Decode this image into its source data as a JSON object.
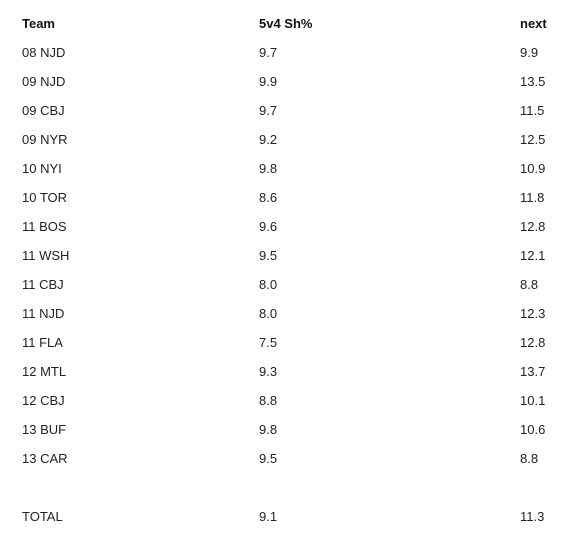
{
  "table": {
    "headers": {
      "team": "Team",
      "sh": "5v4 Sh%",
      "next": "next"
    },
    "rows": [
      {
        "team": "08 NJD",
        "sh": "9.7",
        "next": "9.9"
      },
      {
        "team": "09 NJD",
        "sh": "9.9",
        "next": "13.5"
      },
      {
        "team": "09 CBJ",
        "sh": "9.7",
        "next": "11.5"
      },
      {
        "team": "09 NYR",
        "sh": "9.2",
        "next": "12.5"
      },
      {
        "team": "10 NYI",
        "sh": "9.8",
        "next": "10.9"
      },
      {
        "team": "10 TOR",
        "sh": "8.6",
        "next": "11.8"
      },
      {
        "team": "11 BOS",
        "sh": "9.6",
        "next": "12.8"
      },
      {
        "team": "11 WSH",
        "sh": "9.5",
        "next": "12.1"
      },
      {
        "team": "11 CBJ",
        "sh": "8.0",
        "next": "8.8"
      },
      {
        "team": "11 NJD",
        "sh": "8.0",
        "next": "12.3"
      },
      {
        "team": "11 FLA",
        "sh": "7.5",
        "next": "12.8"
      },
      {
        "team": "12 MTL",
        "sh": "9.3",
        "next": "13.7"
      },
      {
        "team": "12 CBJ",
        "sh": "8.8",
        "next": "10.1"
      },
      {
        "team": "13 BUF",
        "sh": "9.8",
        "next": "10.6"
      },
      {
        "team": "13 CAR",
        "sh": "9.5",
        "next": "8.8"
      }
    ],
    "total": {
      "team": "TOTAL",
      "sh": "9.1",
      "next": "11.3"
    }
  }
}
